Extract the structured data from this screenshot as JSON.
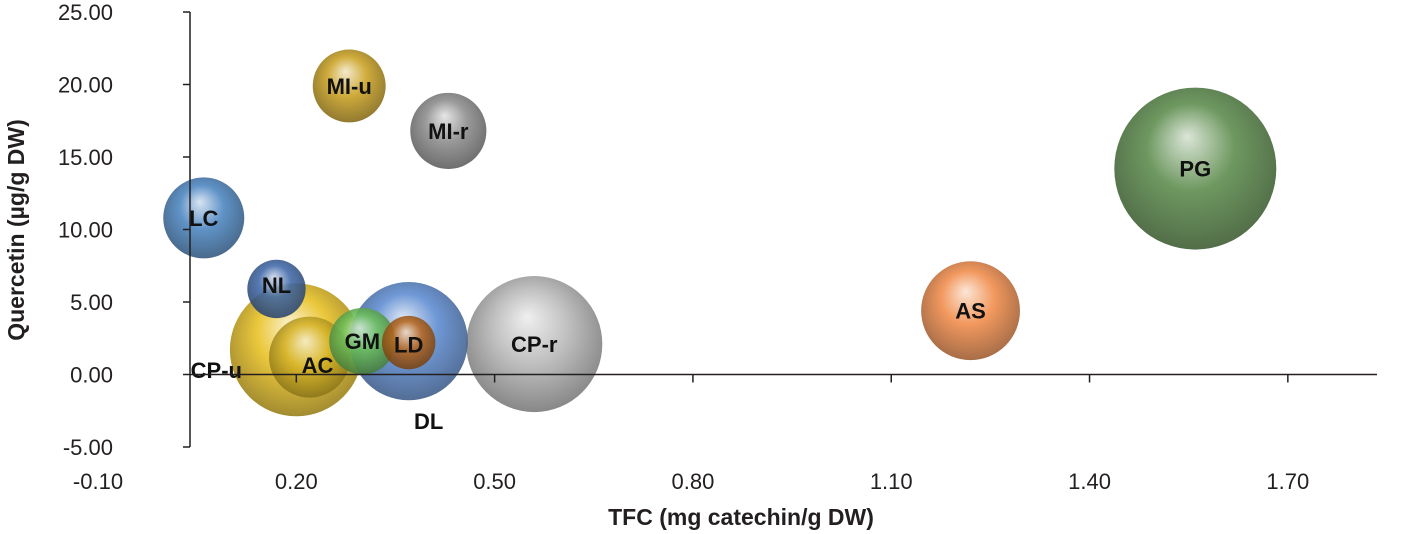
{
  "chart_data": {
    "type": "bubble",
    "xlabel": "TFC (mg catechin/g DW)",
    "ylabel": "Quercetin (µg/g DW)",
    "xlim": [
      -0.1,
      1.85
    ],
    "ylim": [
      -5.0,
      25.0
    ],
    "x_ticks": [
      -0.1,
      0.2,
      0.5,
      0.8,
      1.1,
      1.4,
      1.7
    ],
    "x_tick_labels": [
      "-0.10",
      "0.20",
      "0.50",
      "0.80",
      "1.10",
      "1.40",
      "1.70"
    ],
    "y_ticks": [
      -5,
      0,
      5,
      10,
      15,
      20,
      25
    ],
    "y_tick_labels": [
      "-5.00",
      "0.00",
      "5.00",
      "10.00",
      "15.00",
      "20.00",
      "25.00"
    ],
    "grid": false,
    "legend": "none",
    "points": [
      {
        "label": "PG",
        "x": 1.56,
        "y": 14.2,
        "size": 1.0,
        "color": "#5a8a4a"
      },
      {
        "label": "AS",
        "x": 1.22,
        "y": 4.4,
        "size": 0.61,
        "color": "#f08a48"
      },
      {
        "label": "CP-r",
        "x": 0.56,
        "y": 2.1,
        "size": 0.84,
        "color": "#b8b8b8"
      },
      {
        "label": "DL",
        "x": 0.37,
        "y": 2.3,
        "size": 0.73,
        "color": "#5b8ad0"
      },
      {
        "label": "CP-u",
        "x": 0.2,
        "y": 1.7,
        "size": 0.82,
        "color": "#e8c020"
      },
      {
        "label": "AC",
        "x": 0.22,
        "y": 1.2,
        "size": 0.5,
        "color": "#d6b428"
      },
      {
        "label": "GM",
        "x": 0.3,
        "y": 2.3,
        "size": 0.41,
        "color": "#6cc05a"
      },
      {
        "label": "LD",
        "x": 0.37,
        "y": 2.2,
        "size": 0.33,
        "color": "#b5651d"
      },
      {
        "label": "NL",
        "x": 0.17,
        "y": 5.9,
        "size": 0.36,
        "color": "#3f68a8"
      },
      {
        "label": "LC",
        "x": 0.06,
        "y": 10.8,
        "size": 0.5,
        "color": "#4a84c0"
      },
      {
        "label": "MI-u",
        "x": 0.28,
        "y": 19.9,
        "size": 0.45,
        "color": "#c9a020"
      },
      {
        "label": "MI-r",
        "x": 0.43,
        "y": 16.8,
        "size": 0.47,
        "color": "#8c8c8c"
      }
    ]
  }
}
